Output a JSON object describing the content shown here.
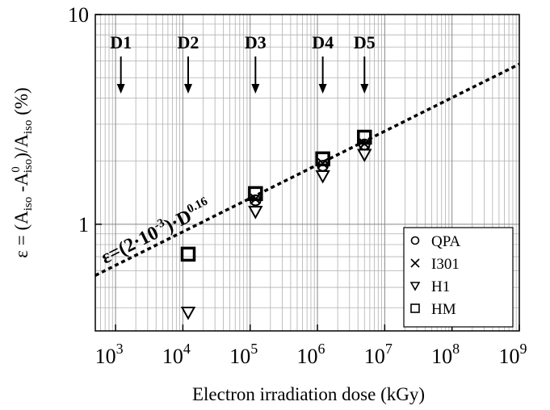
{
  "chart_data": {
    "type": "scatter",
    "xlabel": "Electron irradiation dose (kGy)",
    "ylabel_parts": [
      "ε = (A",
      "iso",
      " -A",
      "0",
      "iso",
      ")/A",
      "iso",
      " (%)"
    ],
    "xlog": true,
    "ylog": true,
    "grid": true,
    "legend": "lower right",
    "xlim": [
      500,
      1000000000
    ],
    "ylim": [
      0.31,
      10
    ],
    "xticks": [
      {
        "value": 1000,
        "label": "10",
        "exp": "3"
      },
      {
        "value": 10000,
        "label": "10",
        "exp": "4"
      },
      {
        "value": 100000,
        "label": "10",
        "exp": "5"
      },
      {
        "value": 1000000,
        "label": "10",
        "exp": "6"
      },
      {
        "value": 10000000,
        "label": "10",
        "exp": "7"
      },
      {
        "value": 100000000,
        "label": "10",
        "exp": "8"
      },
      {
        "value": 1000000000,
        "label": "10",
        "exp": "9"
      }
    ],
    "yticks": [
      1,
      10
    ],
    "series": [
      {
        "name": "QPA",
        "marker": "circle",
        "color": "#000000",
        "x": [
          120000,
          1200000,
          5000000
        ],
        "values": [
          1.3,
          1.9,
          2.4
        ]
      },
      {
        "name": "I301",
        "marker": "x",
        "color": "#000000",
        "x": [
          120000,
          1200000,
          5000000
        ],
        "values": [
          1.32,
          1.95,
          2.42
        ]
      },
      {
        "name": "H1",
        "marker": "triangle-down",
        "color": "#000000",
        "x": [
          12000,
          120000,
          1200000,
          5000000
        ],
        "values": [
          0.38,
          1.15,
          1.7,
          2.15
        ]
      },
      {
        "name": "HM",
        "marker": "square",
        "color": "#000000",
        "x": [
          12000,
          120000,
          1200000,
          5000000
        ],
        "values": [
          0.72,
          1.4,
          2.05,
          2.6
        ]
      }
    ],
    "fit": {
      "x": [
        500,
        1000000000
      ],
      "values": [
        0.57,
        5.8
      ],
      "color": "#000000",
      "label_parts": [
        "ε=(2·10",
        "-3",
        ")·D",
        "0.16"
      ]
    },
    "annotations": [
      {
        "text": "D1",
        "x": 1200
      },
      {
        "text": "D2",
        "x": 12000
      },
      {
        "text": "D3",
        "x": 120000
      },
      {
        "text": "D4",
        "x": 1200000
      },
      {
        "text": "D5",
        "x": 5000000
      }
    ]
  }
}
